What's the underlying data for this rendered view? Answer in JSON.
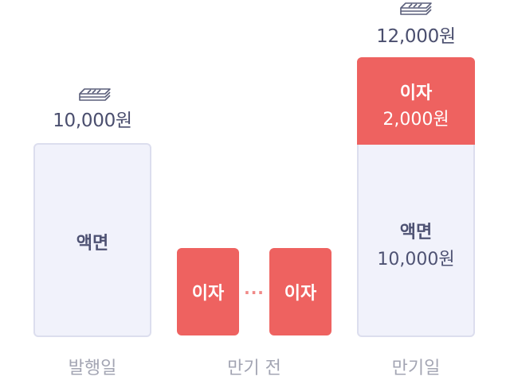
{
  "issue": {
    "amount": "10,000원",
    "face_label": "액면",
    "stage_label": "발행일"
  },
  "before_maturity": {
    "interest_label_1": "이자",
    "ellipsis": "···",
    "interest_label_2": "이자",
    "stage_label": "만기 전"
  },
  "maturity": {
    "total_amount": "12,000원",
    "interest_label": "이자",
    "interest_amount": "2,000원",
    "face_label": "액면",
    "face_amount": "10,000원",
    "stage_label": "만기일"
  },
  "colors": {
    "interest_red": "#ee6260",
    "face_fill": "#f1f2fb",
    "face_border": "#dcdeee",
    "text_dark": "#4a4e6e",
    "text_muted": "#a3a5b3"
  },
  "icons": [
    "money-stack-icon",
    "money-stack-icon"
  ]
}
